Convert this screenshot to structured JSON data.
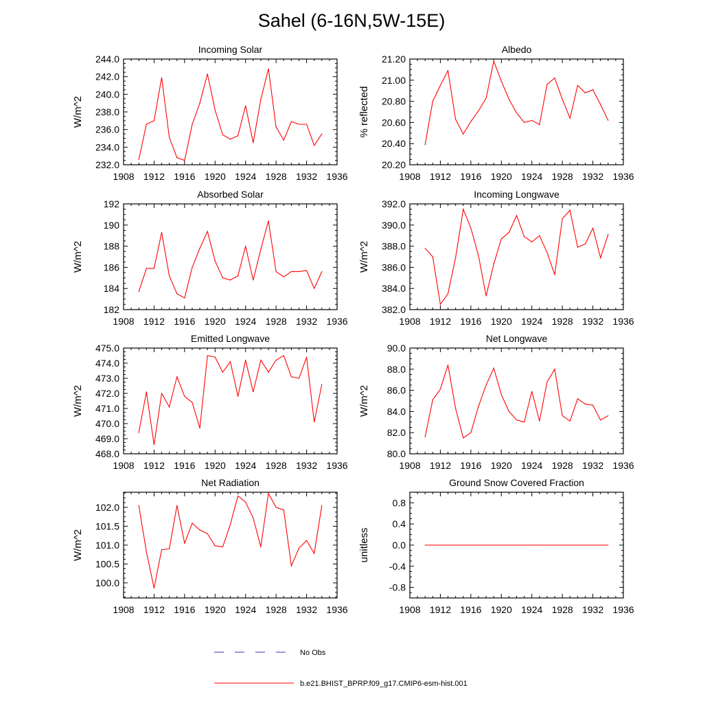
{
  "title": "Sahel (6-16N,5W-15E)",
  "colors": {
    "model": "#ff0000",
    "obs": "#3333aa",
    "axis": "#000000"
  },
  "legend": [
    {
      "label": "No Obs",
      "style": "dashed",
      "color": "#3333aa"
    },
    {
      "label": "b.e21.BHIST_BPRP.f09_g17.CMIP6-esm-hist.001",
      "style": "solid",
      "color": "#ff0000"
    }
  ],
  "chart_data": [
    {
      "type": "line",
      "title": "Incoming Solar",
      "xlabel": "",
      "ylabel": "W/m^2",
      "xlim": [
        1908,
        1936
      ],
      "ylim": [
        232,
        244
      ],
      "decimals": 1,
      "xticks": [
        1908,
        1912,
        1916,
        1920,
        1924,
        1928,
        1932,
        1936
      ],
      "yticks": [
        232,
        234,
        236,
        238,
        240,
        242,
        244
      ],
      "grid": false,
      "series": [
        {
          "x": [
            1910,
            1911,
            1912,
            1913,
            1914,
            1915,
            1916,
            1917,
            1918,
            1919,
            1920,
            1921,
            1922,
            1923,
            1924,
            1925,
            1926,
            1927,
            1928,
            1929,
            1930,
            1931,
            1932,
            1933,
            1934
          ],
          "values": [
            232.6,
            236.6,
            237.0,
            241.9,
            235.1,
            232.8,
            232.5,
            236.6,
            239.0,
            242.3,
            238.2,
            235.4,
            234.9,
            235.3,
            238.7,
            234.5,
            239.4,
            242.9,
            236.3,
            234.8,
            236.9,
            236.6,
            236.6,
            234.2,
            235.5
          ]
        }
      ]
    },
    {
      "type": "line",
      "title": "Albedo",
      "xlabel": "",
      "ylabel": "% reflected",
      "xlim": [
        1908,
        1936
      ],
      "ylim": [
        20.2,
        21.2
      ],
      "decimals": 2,
      "xticks": [
        1908,
        1912,
        1916,
        1920,
        1924,
        1928,
        1932,
        1936
      ],
      "yticks": [
        20.2,
        20.4,
        20.6,
        20.8,
        21.0,
        21.2
      ],
      "grid": false,
      "series": [
        {
          "x": [
            1910,
            1911,
            1912,
            1913,
            1914,
            1915,
            1916,
            1917,
            1918,
            1919,
            1920,
            1921,
            1922,
            1923,
            1924,
            1925,
            1926,
            1927,
            1928,
            1929,
            1930,
            1931,
            1932,
            1933,
            1934
          ],
          "values": [
            20.39,
            20.8,
            20.95,
            21.09,
            20.63,
            20.49,
            20.61,
            20.71,
            20.83,
            21.18,
            20.99,
            20.82,
            20.69,
            20.6,
            20.62,
            20.58,
            20.96,
            21.02,
            20.82,
            20.64,
            20.95,
            20.88,
            20.91,
            20.77,
            20.62
          ]
        }
      ]
    },
    {
      "type": "line",
      "title": "Absorbed Solar",
      "xlabel": "",
      "ylabel": "W/m^2",
      "xlim": [
        1908,
        1936
      ],
      "ylim": [
        182,
        192
      ],
      "decimals": 0,
      "xticks": [
        1908,
        1912,
        1916,
        1920,
        1924,
        1928,
        1932,
        1936
      ],
      "yticks": [
        182,
        184,
        186,
        188,
        190,
        192
      ],
      "grid": false,
      "series": [
        {
          "x": [
            1910,
            1911,
            1912,
            1913,
            1914,
            1915,
            1916,
            1917,
            1918,
            1919,
            1920,
            1921,
            1922,
            1923,
            1924,
            1925,
            1926,
            1927,
            1928,
            1929,
            1930,
            1931,
            1932,
            1933,
            1934
          ],
          "values": [
            183.7,
            185.9,
            185.9,
            189.3,
            185.2,
            183.5,
            183.1,
            186.0,
            187.8,
            189.4,
            186.6,
            185.0,
            184.8,
            185.2,
            188.0,
            184.8,
            187.7,
            190.4,
            185.6,
            185.1,
            185.6,
            185.6,
            185.7,
            184.0,
            185.6
          ]
        }
      ]
    },
    {
      "type": "line",
      "title": "Incoming Longwave",
      "xlabel": "",
      "ylabel": "W/m^2",
      "xlim": [
        1908,
        1936
      ],
      "ylim": [
        382,
        392
      ],
      "decimals": 1,
      "xticks": [
        1908,
        1912,
        1916,
        1920,
        1924,
        1928,
        1932,
        1936
      ],
      "yticks": [
        382,
        384,
        386,
        388,
        390,
        392
      ],
      "grid": false,
      "series": [
        {
          "x": [
            1910,
            1911,
            1912,
            1913,
            1914,
            1915,
            1916,
            1917,
            1918,
            1919,
            1920,
            1921,
            1922,
            1923,
            1924,
            1925,
            1926,
            1927,
            1928,
            1929,
            1930,
            1931,
            1932,
            1933,
            1934
          ],
          "values": [
            387.8,
            387.0,
            382.5,
            383.5,
            386.9,
            391.5,
            389.7,
            387.1,
            383.3,
            386.3,
            388.7,
            389.3,
            390.9,
            388.9,
            388.4,
            389.0,
            387.4,
            385.3,
            390.6,
            391.4,
            387.9,
            388.2,
            389.7,
            386.9,
            389.1
          ]
        }
      ]
    },
    {
      "type": "line",
      "title": "Emitted Longwave",
      "xlabel": "",
      "ylabel": "W/m^2",
      "xlim": [
        1908,
        1936
      ],
      "ylim": [
        468,
        475
      ],
      "decimals": 1,
      "xticks": [
        1908,
        1912,
        1916,
        1920,
        1924,
        1928,
        1932,
        1936
      ],
      "yticks": [
        468,
        469,
        470,
        471,
        472,
        473,
        474,
        475
      ],
      "grid": false,
      "series": [
        {
          "x": [
            1910,
            1911,
            1912,
            1913,
            1914,
            1915,
            1916,
            1917,
            1918,
            1919,
            1920,
            1921,
            1922,
            1923,
            1924,
            1925,
            1926,
            1927,
            1928,
            1929,
            1930,
            1931,
            1932,
            1933,
            1934
          ],
          "values": [
            469.4,
            472.1,
            468.6,
            472.0,
            471.1,
            473.1,
            471.8,
            471.4,
            469.7,
            474.5,
            474.4,
            473.4,
            474.1,
            471.8,
            474.2,
            472.1,
            474.2,
            473.4,
            474.2,
            474.5,
            473.1,
            473.0,
            474.4,
            470.1,
            472.6
          ]
        }
      ]
    },
    {
      "type": "line",
      "title": "Net Longwave",
      "xlabel": "",
      "ylabel": "W/m^2",
      "xlim": [
        1908,
        1936
      ],
      "ylim": [
        80,
        90
      ],
      "decimals": 1,
      "xticks": [
        1908,
        1912,
        1916,
        1920,
        1924,
        1928,
        1932,
        1936
      ],
      "yticks": [
        80,
        82,
        84,
        86,
        88,
        90
      ],
      "grid": false,
      "series": [
        {
          "x": [
            1910,
            1911,
            1912,
            1913,
            1914,
            1915,
            1916,
            1917,
            1918,
            1919,
            1920,
            1921,
            1922,
            1923,
            1924,
            1925,
            1926,
            1927,
            1928,
            1929,
            1930,
            1931,
            1932,
            1933,
            1934
          ],
          "values": [
            81.6,
            85.1,
            86.1,
            88.4,
            84.3,
            81.5,
            82.0,
            84.5,
            86.5,
            88.1,
            85.6,
            84.0,
            83.2,
            83.0,
            85.9,
            83.1,
            86.8,
            88.0,
            83.6,
            83.1,
            85.2,
            84.7,
            84.6,
            83.2,
            83.6
          ]
        }
      ]
    },
    {
      "type": "line",
      "title": "Net Radiation",
      "xlabel": "",
      "ylabel": "W/m^2",
      "xlim": [
        1908,
        1936
      ],
      "ylim": [
        99.6,
        102.4
      ],
      "decimals": 1,
      "xticks": [
        1908,
        1912,
        1916,
        1920,
        1924,
        1928,
        1932,
        1936
      ],
      "yticks": [
        100.0,
        100.5,
        101.0,
        101.5,
        102.0
      ],
      "grid": false,
      "series": [
        {
          "x": [
            1910,
            1911,
            1912,
            1913,
            1914,
            1915,
            1916,
            1917,
            1918,
            1919,
            1920,
            1921,
            1922,
            1923,
            1924,
            1925,
            1926,
            1927,
            1928,
            1929,
            1930,
            1931,
            1932,
            1933,
            1934
          ],
          "values": [
            102.05,
            100.82,
            99.86,
            100.88,
            100.9,
            102.05,
            101.05,
            101.58,
            101.4,
            101.3,
            100.98,
            100.95,
            101.55,
            102.3,
            102.14,
            101.72,
            100.95,
            102.37,
            102.0,
            101.93,
            100.45,
            100.92,
            101.12,
            100.78,
            102.05
          ]
        }
      ]
    },
    {
      "type": "line",
      "title": "Ground Snow Covered Fraction",
      "xlabel": "",
      "ylabel": "unitless",
      "xlim": [
        1908,
        1936
      ],
      "ylim": [
        -1.0,
        1.0
      ],
      "decimals": 1,
      "xticks": [
        1908,
        1912,
        1916,
        1920,
        1924,
        1928,
        1932,
        1936
      ],
      "yticks": [
        -0.8,
        -0.4,
        0.0,
        0.4,
        0.8
      ],
      "grid": false,
      "series": [
        {
          "x": [
            1910,
            1911,
            1912,
            1913,
            1914,
            1915,
            1916,
            1917,
            1918,
            1919,
            1920,
            1921,
            1922,
            1923,
            1924,
            1925,
            1926,
            1927,
            1928,
            1929,
            1930,
            1931,
            1932,
            1933,
            1934
          ],
          "values": [
            0,
            0,
            0,
            0,
            0,
            0,
            0,
            0,
            0,
            0,
            0,
            0,
            0,
            0,
            0,
            0,
            0,
            0,
            0,
            0,
            0,
            0,
            0,
            0,
            0
          ]
        }
      ]
    }
  ]
}
